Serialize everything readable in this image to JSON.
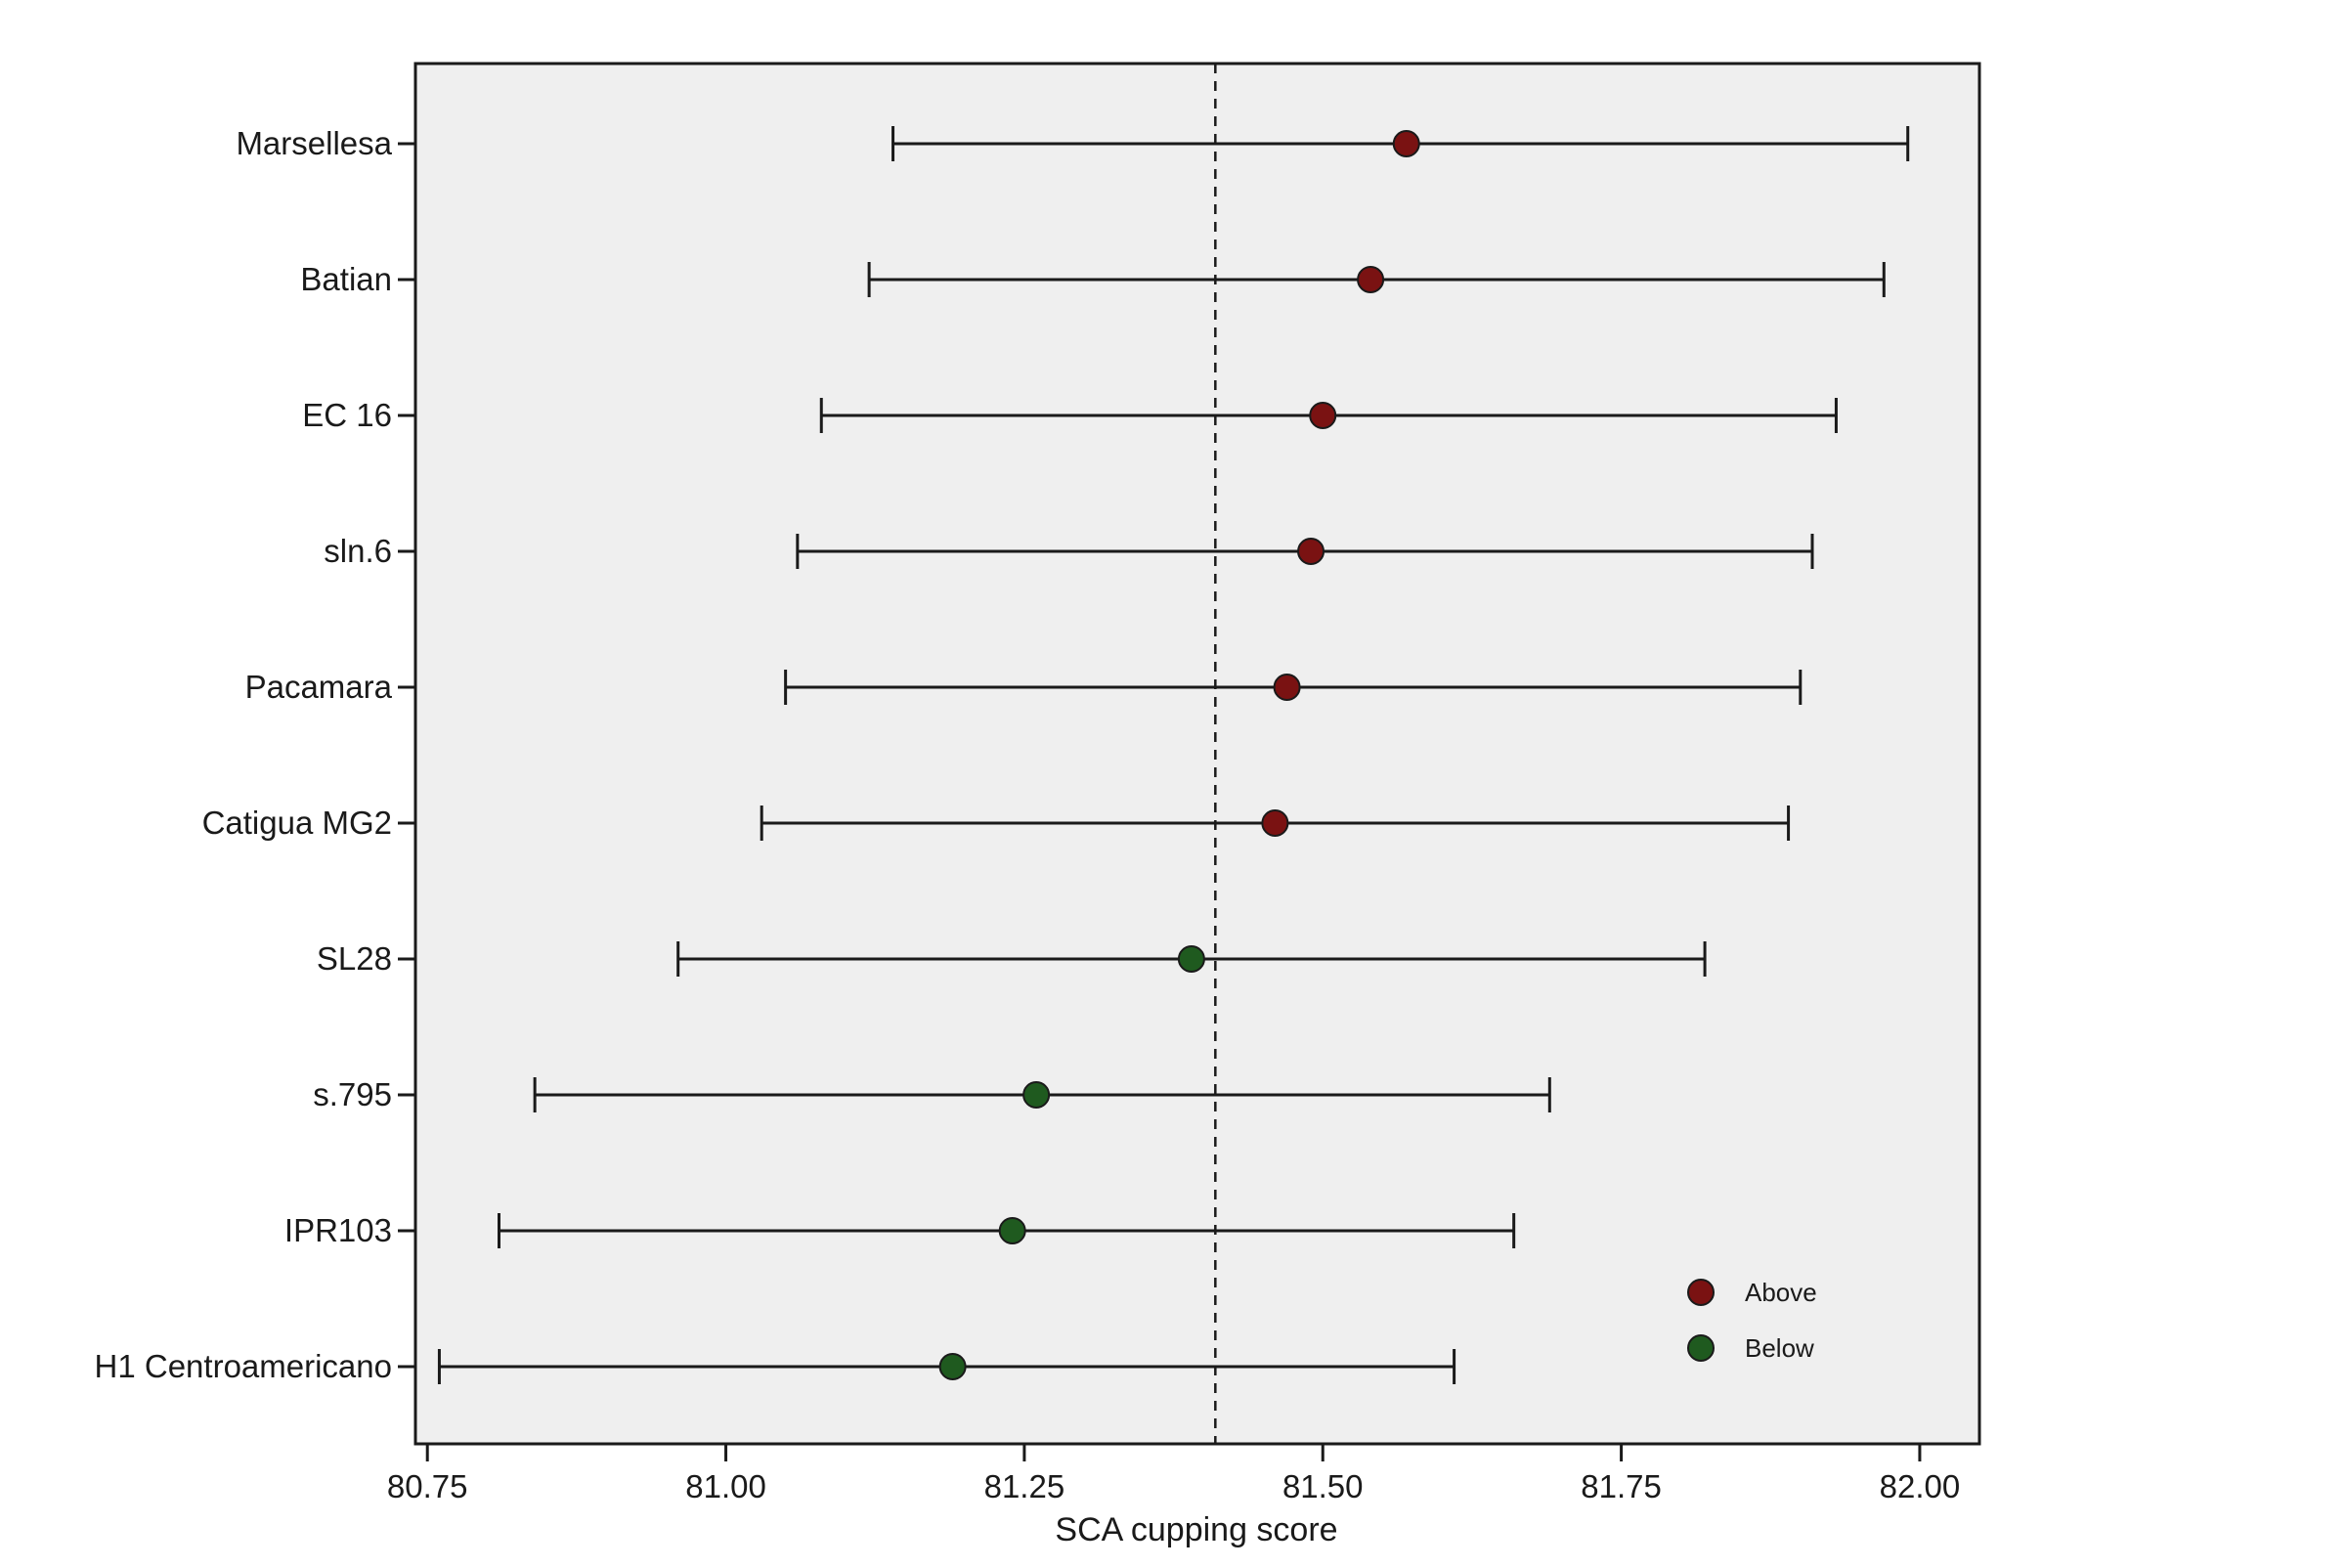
{
  "chart_data": {
    "type": "scatter",
    "subtype": "forest-plot-with-error-bars",
    "title": "",
    "xlabel": "SCA cupping score",
    "ylabel": "",
    "xlim": [
      80.74,
      82.05
    ],
    "x_ticks": [
      "80.75",
      "81.00",
      "81.25",
      "81.50",
      "81.75",
      "82.00"
    ],
    "reference_line": {
      "x": 81.41,
      "style": "dashed"
    },
    "grid": false,
    "background": "#efefef",
    "legend": {
      "position": "bottom-right",
      "entries": [
        {
          "label": "Above",
          "color": "#7a1212"
        },
        {
          "label": "Below",
          "color": "#1f5a1f"
        }
      ]
    },
    "categories": [
      "Marsellesa",
      "Batian",
      "EC 16",
      "sln.6",
      "Pacamara",
      "Catigua MG2",
      "SL28",
      "s.795",
      "IPR103",
      "H1 Centroamericano"
    ],
    "points": [
      {
        "label": "Marsellesa",
        "x": 81.57,
        "low": 81.14,
        "high": 81.99,
        "group": "Above"
      },
      {
        "label": "Batian",
        "x": 81.54,
        "low": 81.12,
        "high": 81.97,
        "group": "Above"
      },
      {
        "label": "EC 16",
        "x": 81.5,
        "low": 81.08,
        "high": 81.93,
        "group": "Above"
      },
      {
        "label": "sln.6",
        "x": 81.49,
        "low": 81.06,
        "high": 81.91,
        "group": "Above"
      },
      {
        "label": "Pacamara",
        "x": 81.47,
        "low": 81.05,
        "high": 81.9,
        "group": "Above"
      },
      {
        "label": "Catigua MG2",
        "x": 81.46,
        "low": 81.03,
        "high": 81.89,
        "group": "Above"
      },
      {
        "label": "SL28",
        "x": 81.39,
        "low": 80.96,
        "high": 81.82,
        "group": "Below"
      },
      {
        "label": "s.795",
        "x": 81.26,
        "low": 80.84,
        "high": 81.69,
        "group": "Below"
      },
      {
        "label": "IPR103",
        "x": 81.24,
        "low": 80.81,
        "high": 81.66,
        "group": "Below"
      },
      {
        "label": "H1 Centroamericano",
        "x": 81.19,
        "low": 80.76,
        "high": 81.61,
        "group": "Below"
      }
    ]
  }
}
